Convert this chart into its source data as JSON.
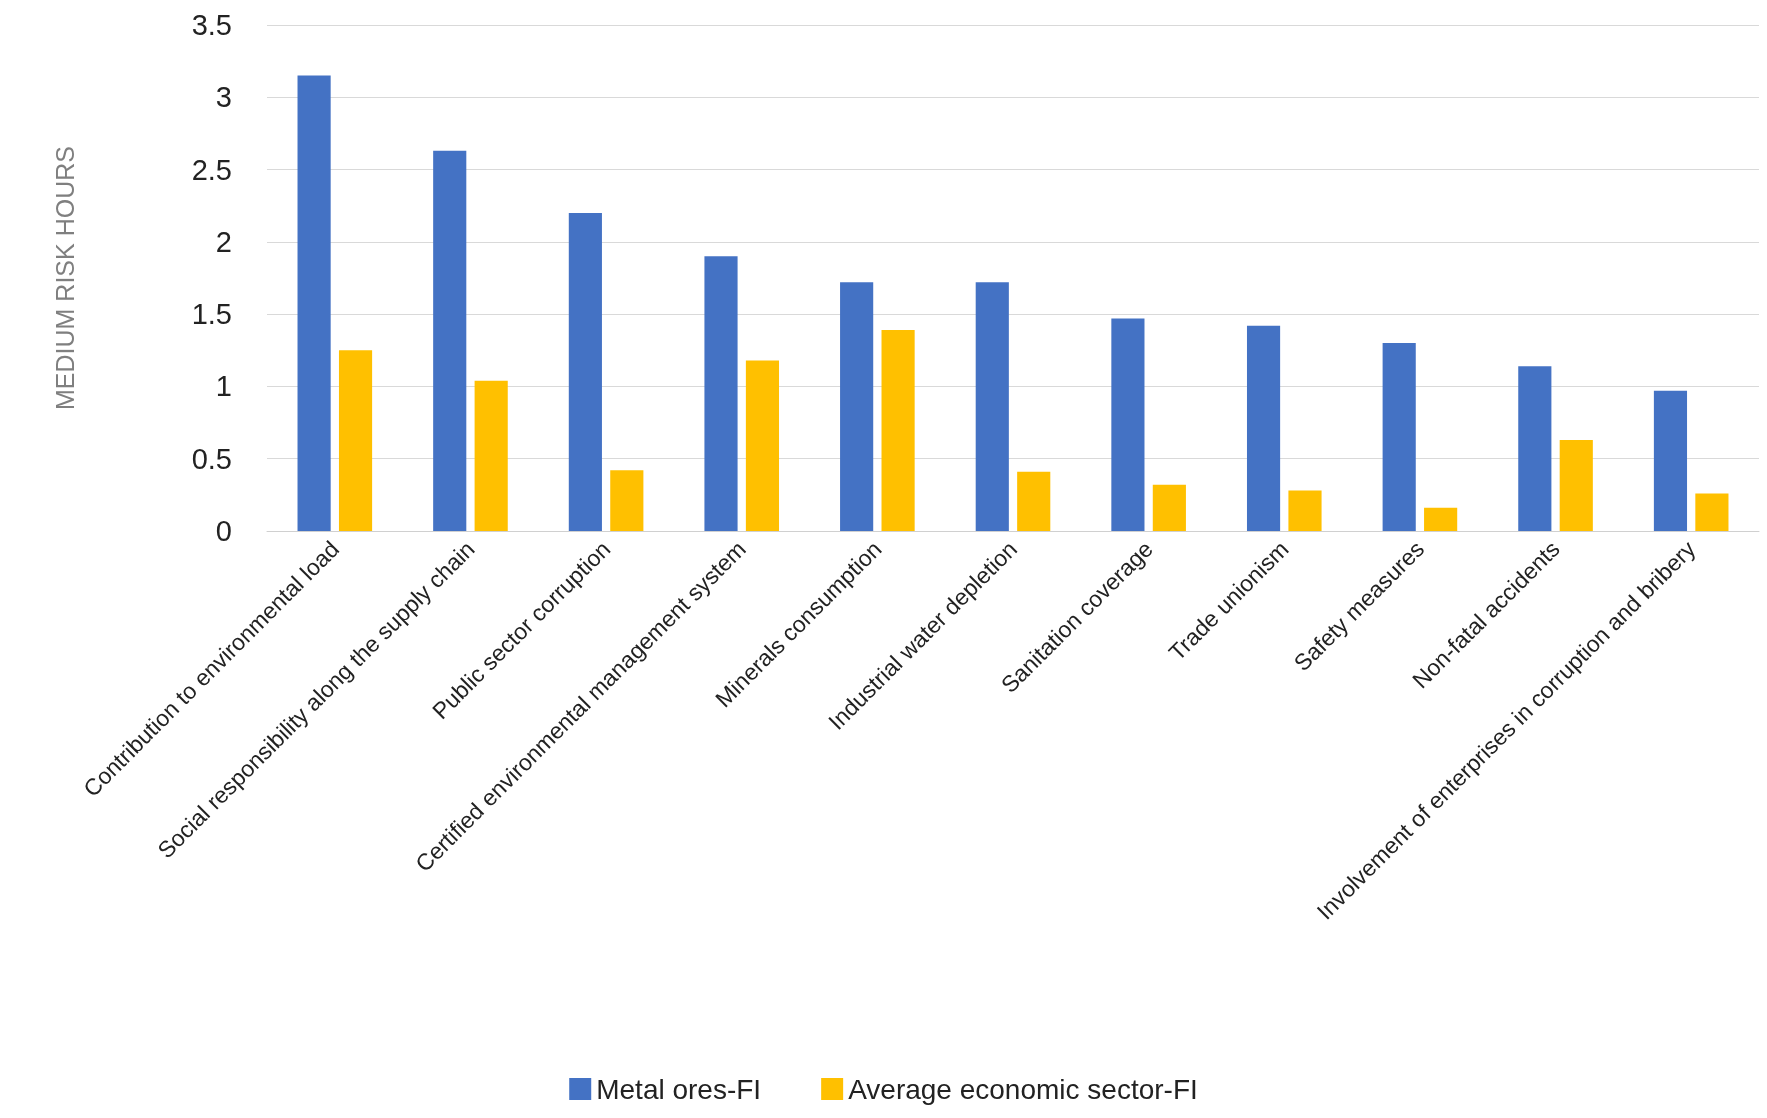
{
  "chart_data": {
    "type": "bar",
    "ylabel": "MEDIUM RISK HOURS",
    "categories": [
      "Contribution to environmental load",
      "Social responsibility along the supply chain",
      "Public sector corruption",
      "Certified environmental management system",
      "Minerals consumption",
      "Industrial water depletion",
      "Sanitation coverage",
      "Trade unionism",
      "Safety measures",
      "Non-fatal accidents",
      "Involvement of enterprises in corruption and bribery"
    ],
    "series": [
      {
        "name": "Metal ores-FI",
        "color": "#4472c4",
        "values": [
          3.15,
          2.63,
          2.2,
          1.9,
          1.72,
          1.72,
          1.47,
          1.42,
          1.3,
          1.14,
          0.97
        ]
      },
      {
        "name": "Average economic sector-FI",
        "color": "#ffc000",
        "values": [
          1.25,
          1.04,
          0.42,
          1.18,
          1.39,
          0.41,
          0.32,
          0.28,
          0.16,
          0.63,
          0.26
        ]
      }
    ],
    "ylim": [
      0,
      3.5
    ],
    "yticks": [
      0,
      0.5,
      1,
      1.5,
      2,
      2.5,
      3,
      3.5
    ],
    "grid": "y",
    "legend": "bottom"
  }
}
